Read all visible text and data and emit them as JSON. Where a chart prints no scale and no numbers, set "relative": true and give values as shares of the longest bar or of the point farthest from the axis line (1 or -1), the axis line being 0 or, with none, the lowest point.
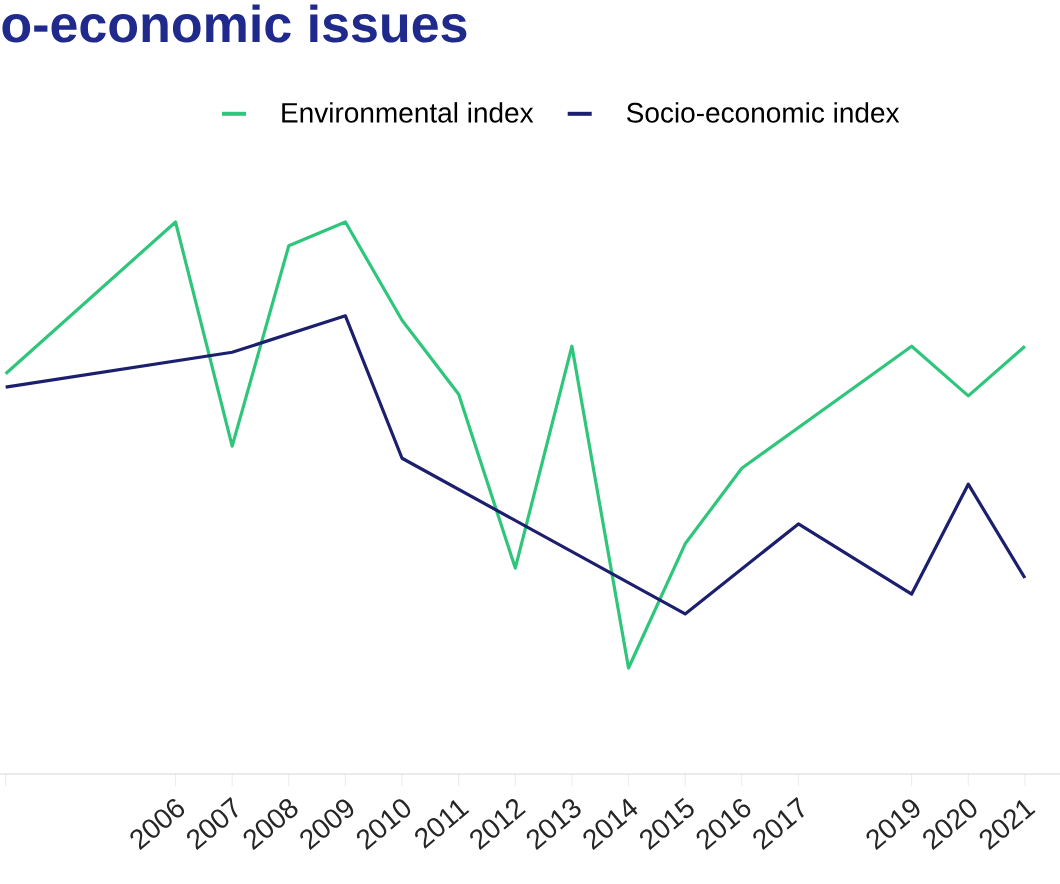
{
  "chart_data": {
    "type": "line",
    "title": "o-economic issues",
    "relative": true,
    "legend": "top",
    "xlim": [
      2002.9,
      2021.62
    ],
    "xticks": [
      {
        "value": 2003,
        "label": null
      },
      2006,
      2007,
      2008,
      2009,
      2010,
      2011,
      2012,
      2013,
      2014,
      2015,
      2016,
      2017,
      2019,
      2020,
      2021
    ],
    "series": [
      {
        "name": "Environmental index",
        "color": "#2fc67c",
        "x": [
          2003,
          2006,
          2007,
          2008,
          2009,
          2010,
          2011,
          2012,
          2013,
          2014,
          2015,
          2016,
          2019,
          2020,
          2021
        ],
        "values": [
          0.725,
          1.0,
          0.594,
          0.957,
          1.0,
          0.822,
          0.688,
          0.373,
          0.775,
          0.192,
          0.417,
          0.554,
          0.775,
          0.685,
          0.775
        ]
      },
      {
        "name": "Socio-economic index",
        "color": "#1b1f6e",
        "x": [
          2003,
          2007,
          2009,
          2010,
          2015,
          2017,
          2019,
          2020,
          2021
        ],
        "values": [
          0.701,
          0.764,
          0.83,
          0.572,
          0.29,
          0.453,
          0.326,
          0.525,
          0.355
        ]
      }
    ]
  }
}
